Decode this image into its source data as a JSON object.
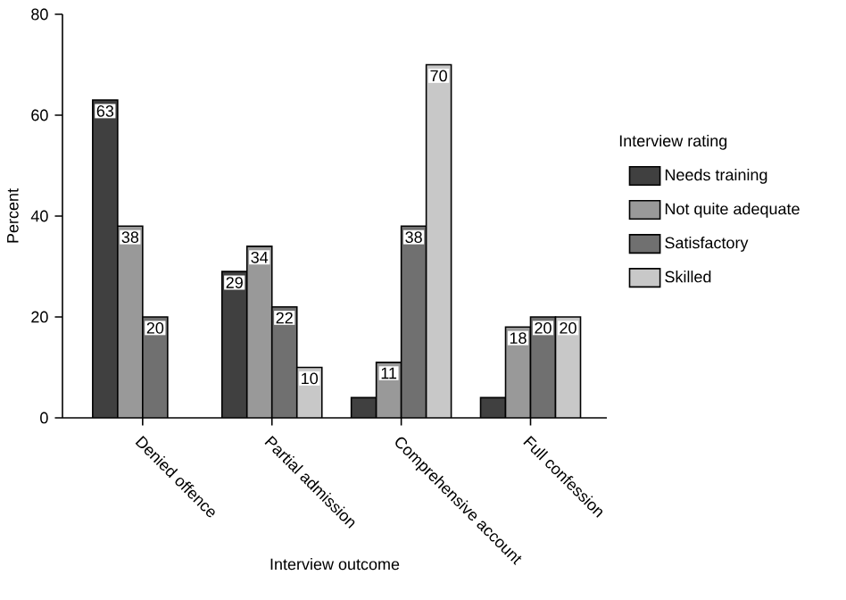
{
  "chart_data": {
    "type": "bar",
    "xlabel": "Interview outcome",
    "ylabel": "Percent",
    "legend_title": "Interview rating",
    "categories": [
      "Denied offence",
      "Partial admission",
      "Comprehensive account",
      "Full confession"
    ],
    "series": [
      {
        "name": "Needs training",
        "color": "#404040",
        "values": [
          63,
          29,
          4,
          4
        ],
        "value_labels": [
          "63",
          "29",
          null,
          null
        ]
      },
      {
        "name": "Not quite adequate",
        "color": "#999999",
        "values": [
          38,
          34,
          11,
          18
        ],
        "value_labels": [
          "38",
          "34",
          "11",
          "18"
        ]
      },
      {
        "name": "Satisfactory",
        "color": "#707070",
        "values": [
          20,
          22,
          38,
          20
        ],
        "value_labels": [
          "20",
          "22",
          "38",
          "20"
        ]
      },
      {
        "name": "Skilled",
        "color": "#c8c8c8",
        "values": [
          null,
          10,
          70,
          20
        ],
        "value_labels": [
          null,
          "10",
          "70",
          "20"
        ]
      }
    ],
    "ylim": [
      0,
      80
    ],
    "yticks": [
      0,
      20,
      40,
      60,
      80
    ],
    "grid": false,
    "legend": "right"
  }
}
